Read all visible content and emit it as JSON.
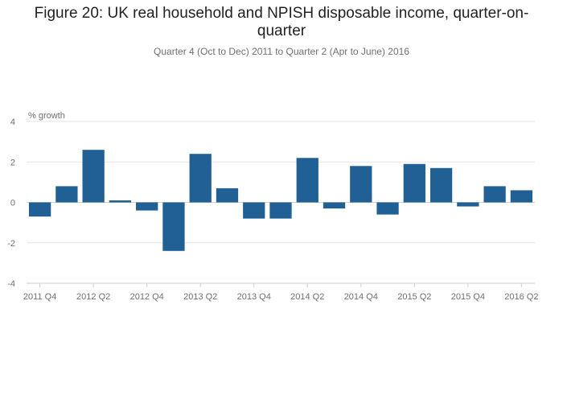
{
  "title": "Figure 20: UK real household and NPISH disposable income, quarter-on-quarter",
  "subtitle": "Quarter 4 (Oct to Dec) 2011 to Quarter 2 (Apr to June) 2016",
  "chart_data": {
    "type": "bar",
    "title": "Figure 20: UK real household and NPISH disposable income, quarter-on-quarter",
    "subtitle": "Quarter 4 (Oct to Dec) 2011 to Quarter 2 (Apr to June) 2016",
    "ylabel": "% growth",
    "xlabel": "",
    "ylim": [
      -4,
      4
    ],
    "yticks": [
      4,
      2,
      0,
      -2,
      -4
    ],
    "grid": true,
    "bar_color": "#206095",
    "categories": [
      "2011 Q4",
      "2012 Q1",
      "2012 Q2",
      "2012 Q3",
      "2012 Q4",
      "2013 Q1",
      "2013 Q2",
      "2013 Q3",
      "2013 Q4",
      "2014 Q1",
      "2014 Q2",
      "2014 Q3",
      "2014 Q4",
      "2015 Q1",
      "2015 Q2",
      "2015 Q3",
      "2015 Q4",
      "2016 Q1",
      "2016 Q2"
    ],
    "xtick_labels": [
      "2011 Q4",
      "",
      "2012 Q2",
      "",
      "2012 Q4",
      "",
      "2013 Q2",
      "",
      "2013 Q4",
      "",
      "2014 Q2",
      "",
      "2014 Q4",
      "",
      "2015 Q2",
      "",
      "2015 Q4",
      "",
      "2016 Q2"
    ],
    "values": [
      -0.7,
      0.8,
      2.6,
      0.1,
      -0.4,
      -2.4,
      2.4,
      0.7,
      -0.8,
      -0.8,
      2.2,
      -0.3,
      1.8,
      -0.6,
      1.9,
      1.7,
      -0.2,
      0.8,
      0.6
    ]
  }
}
